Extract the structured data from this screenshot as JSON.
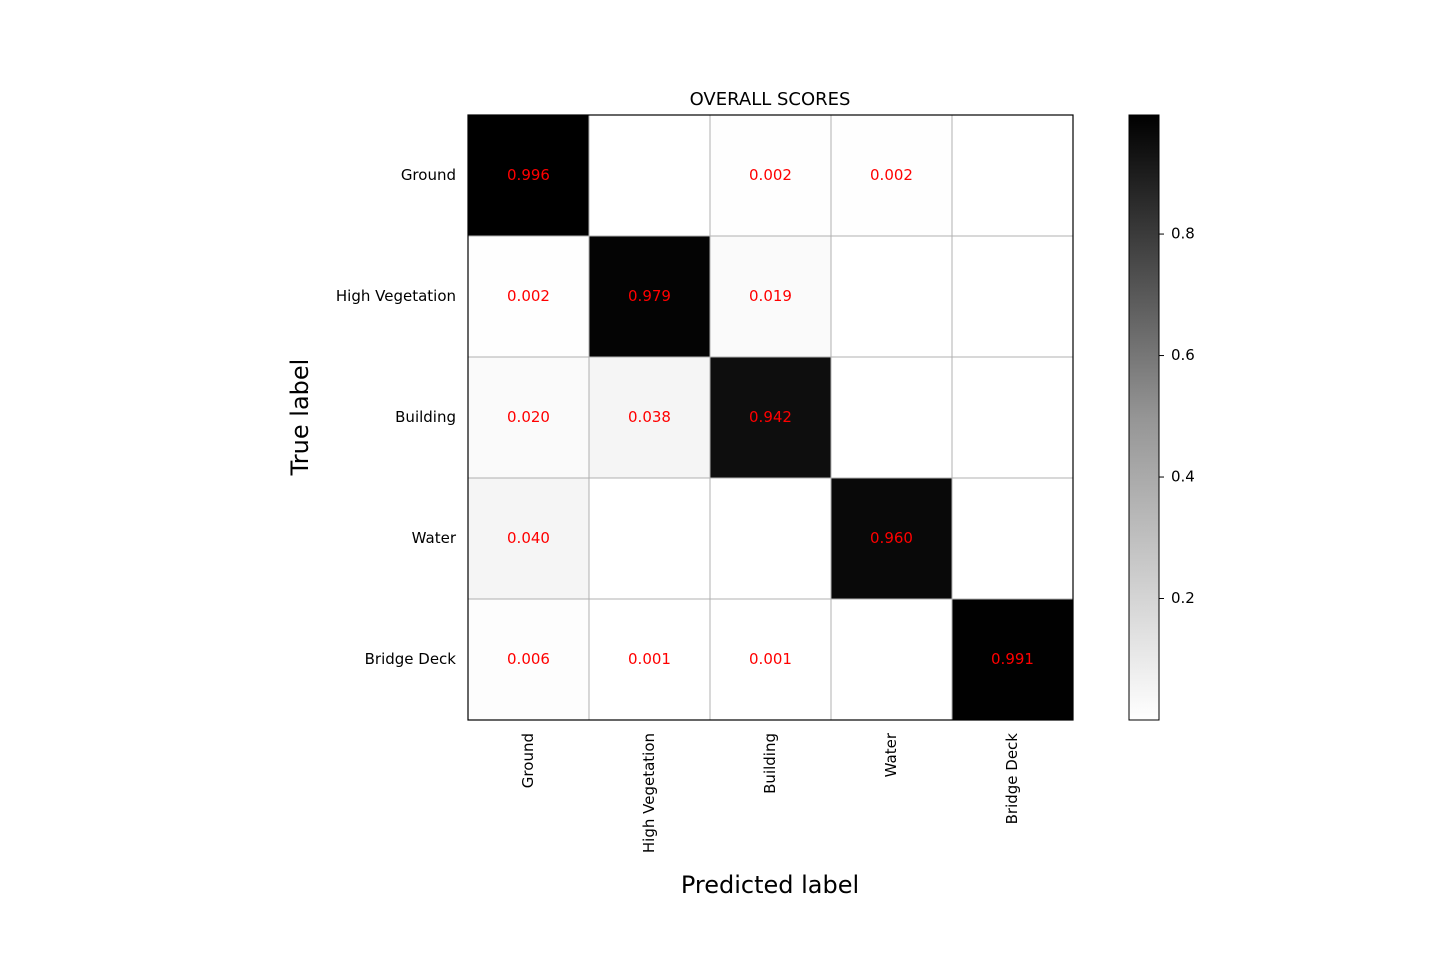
{
  "chart_data": {
    "type": "heatmap",
    "title": "OVERALL SCORES",
    "xlabel": "Predicted label",
    "ylabel": "True label",
    "categories": [
      "Ground",
      "High Vegetation",
      "Building",
      "Water",
      "Bridge Deck"
    ],
    "matrix": [
      [
        0.996,
        null,
        0.002,
        0.002,
        null
      ],
      [
        0.002,
        0.979,
        0.019,
        null,
        null
      ],
      [
        0.02,
        0.038,
        0.942,
        null,
        null
      ],
      [
        0.04,
        null,
        null,
        0.96,
        null
      ],
      [
        0.006,
        0.001,
        0.001,
        null,
        0.991
      ]
    ],
    "value_range": [
      0,
      0.996
    ],
    "colormap": "Greys",
    "grid": true,
    "annotation_color": "#ff0000",
    "colorbar": {
      "ticks": [
        0.2,
        0.4,
        0.6,
        0.8
      ],
      "tick_labels": [
        "0.2",
        "0.4",
        "0.6",
        "0.8"
      ]
    }
  }
}
